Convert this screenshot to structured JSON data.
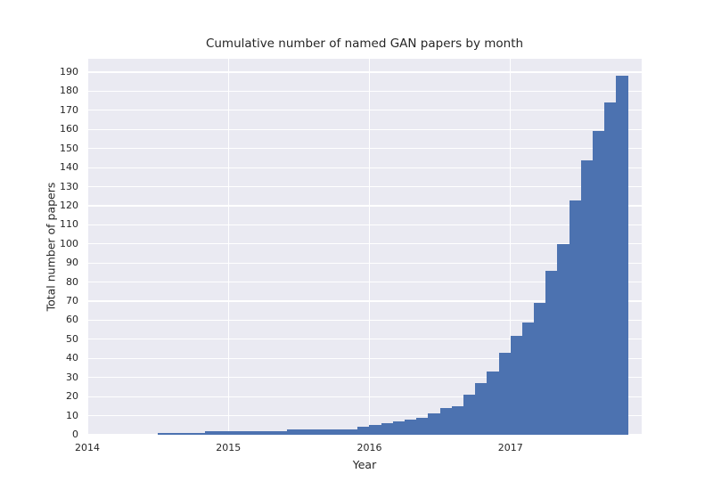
{
  "chart_data": {
    "type": "bar",
    "title": "Cumulative number of named GAN papers by month",
    "xlabel": "Year",
    "ylabel": "Total number of papers",
    "legend": null,
    "grid": true,
    "plot_bg_color": "#EAEAF2",
    "grid_color": "#FFFFFF",
    "bar_color": "#4C72B0",
    "text_color": "#262626",
    "ylim": [
      0,
      197
    ],
    "yticks": [
      0,
      10,
      20,
      30,
      40,
      50,
      60,
      70,
      80,
      90,
      100,
      110,
      120,
      130,
      140,
      150,
      160,
      170,
      180,
      190
    ],
    "xticks": [
      {
        "label": "2014",
        "month_index": 0
      },
      {
        "label": "2015",
        "month_index": 12
      },
      {
        "label": "2016",
        "month_index": 24
      },
      {
        "label": "2017",
        "month_index": 36
      }
    ],
    "xlim_months": 47.17,
    "bar_start_month_index": 6,
    "months": [
      "2014-07",
      "2014-08",
      "2014-09",
      "2014-10",
      "2014-11",
      "2014-12",
      "2015-01",
      "2015-02",
      "2015-03",
      "2015-04",
      "2015-05",
      "2015-06",
      "2015-07",
      "2015-08",
      "2015-09",
      "2015-10",
      "2015-11",
      "2015-12",
      "2016-01",
      "2016-02",
      "2016-03",
      "2016-04",
      "2016-05",
      "2016-06",
      "2016-07",
      "2016-08",
      "2016-09",
      "2016-10",
      "2016-11",
      "2016-12",
      "2017-01",
      "2017-02",
      "2017-03",
      "2017-04",
      "2017-05",
      "2017-06",
      "2017-07",
      "2017-08",
      "2017-09",
      "2017-10"
    ],
    "values": [
      1,
      1,
      1,
      1,
      2,
      2,
      2,
      2,
      2,
      2,
      2,
      3,
      3,
      3,
      3,
      3,
      3,
      4,
      5,
      6,
      7,
      8,
      9,
      11,
      14,
      15,
      21,
      27,
      33,
      43,
      52,
      59,
      69,
      86,
      100,
      123,
      144,
      159,
      174,
      188
    ]
  }
}
